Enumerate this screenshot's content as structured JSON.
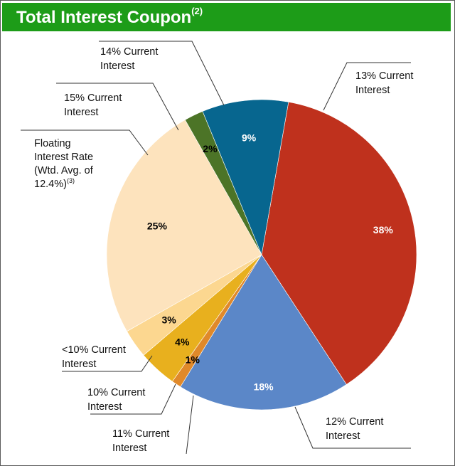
{
  "header": {
    "title": "Total Interest Coupon",
    "title_sup": "(2)"
  },
  "chart_data": {
    "type": "pie",
    "title": "Total Interest Coupon(2)",
    "slices": [
      {
        "name": "13% Current Interest",
        "value": 38,
        "label": "38%",
        "color": "#bf311d",
        "label_color": "#ffffff"
      },
      {
        "name": "12% Current Interest",
        "value": 18,
        "label": "18%",
        "color": "#5b87c8",
        "label_color": "#ffffff"
      },
      {
        "name": "11% Current Interest",
        "value": 1,
        "label": "1%",
        "color": "#e0892a",
        "label_color": "#000000"
      },
      {
        "name": "10% Current Interest",
        "value": 4,
        "label": "4%",
        "color": "#e8b01e",
        "label_color": "#000000"
      },
      {
        "name": "<10% Current Interest",
        "value": 3,
        "label": "3%",
        "color": "#fcd790",
        "label_color": "#000000"
      },
      {
        "name": "Floating Interest Rate (Wtd. Avg. of 12.4%)(3)",
        "value": 25,
        "label": "25%",
        "color": "#fde3bd",
        "label_color": "#000000"
      },
      {
        "name": "15% Current Interest",
        "value": 2,
        "label": "2%",
        "color": "#4c7427",
        "label_color": "#000000"
      },
      {
        "name": "14% Current Interest",
        "value": 9,
        "label": "9%",
        "color": "#07668f",
        "label_color": "#ffffff"
      }
    ],
    "callouts": [
      {
        "lines": [
          "13% Current",
          "Interest"
        ]
      },
      {
        "lines": [
          "12% Current",
          "Interest"
        ]
      },
      {
        "lines": [
          "11% Current",
          "Interest"
        ]
      },
      {
        "lines": [
          "10% Current",
          "Interest"
        ]
      },
      {
        "lines": [
          "<10% Current",
          "Interest"
        ]
      },
      {
        "lines": [
          "Floating",
          "Interest Rate",
          "(Wtd. Avg. of",
          "12.4%)"
        ],
        "sup": "(3)"
      },
      {
        "lines": [
          "15% Current",
          "Interest"
        ]
      },
      {
        "lines": [
          "14% Current",
          "Interest"
        ]
      }
    ]
  }
}
